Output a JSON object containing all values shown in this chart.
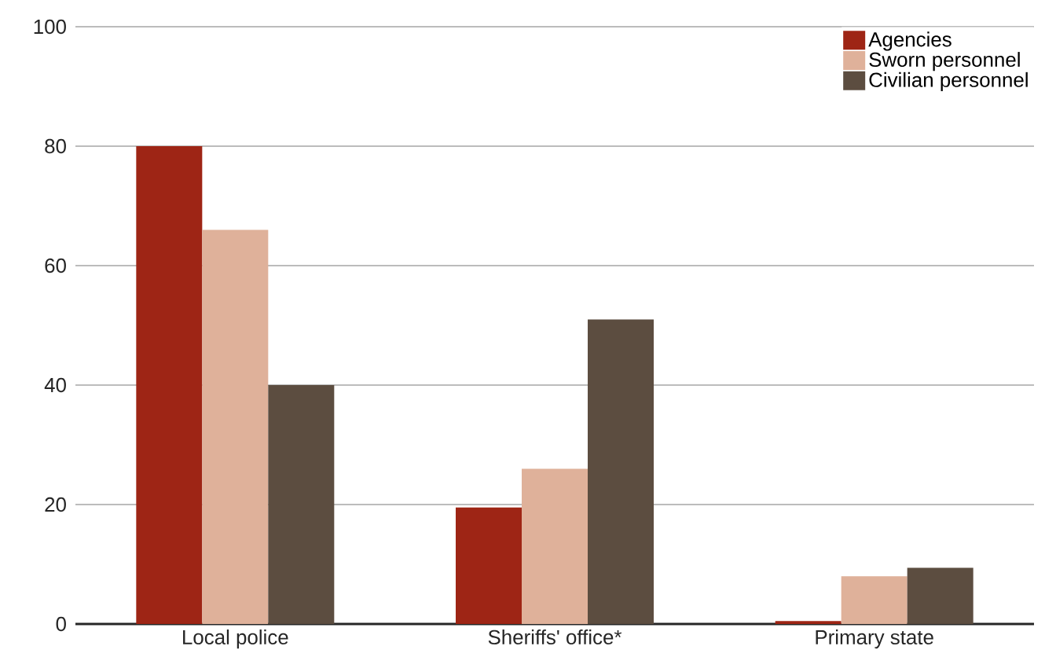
{
  "chart_data": {
    "type": "bar",
    "categories": [
      "Local police",
      "Sheriffs' office*",
      "Primary state"
    ],
    "series": [
      {
        "name": "Agencies",
        "color": "#9e2515",
        "values": [
          80,
          19.5,
          0.5
        ]
      },
      {
        "name": "Sworn personnel",
        "color": "#dfb19a",
        "values": [
          66,
          26,
          8
        ]
      },
      {
        "name": "Civilian personnel",
        "color": "#5c4d40",
        "values": [
          40,
          51,
          9.4
        ]
      }
    ],
    "ylim": [
      0,
      100
    ],
    "yticks": [
      0,
      20,
      40,
      60,
      80,
      100
    ],
    "grid": "y",
    "legend": "top right"
  }
}
